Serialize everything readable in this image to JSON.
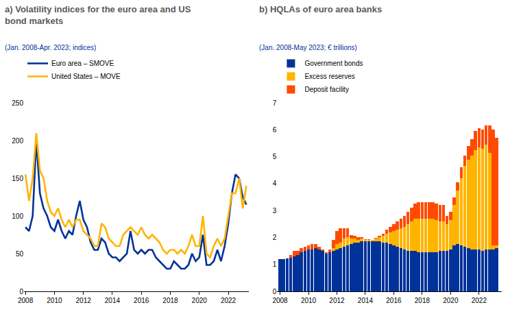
{
  "chart_data": [
    {
      "type": "line",
      "title": "a) Volatility indices for the euro area and US bond markets",
      "subtitle": "(Jan. 2008-Apr. 2023; indices)",
      "x": [
        2008,
        2008.25,
        2008.5,
        2008.75,
        2009,
        2009.25,
        2009.5,
        2009.75,
        2010,
        2010.25,
        2010.5,
        2010.75,
        2011,
        2011.25,
        2011.5,
        2011.75,
        2012,
        2012.25,
        2012.5,
        2012.75,
        2013,
        2013.25,
        2013.5,
        2013.75,
        2014,
        2014.25,
        2014.5,
        2014.75,
        2015,
        2015.25,
        2015.5,
        2015.75,
        2016,
        2016.25,
        2016.5,
        2016.75,
        2017,
        2017.25,
        2017.5,
        2017.75,
        2018,
        2018.25,
        2018.5,
        2018.75,
        2019,
        2019.25,
        2019.5,
        2019.75,
        2020,
        2020.25,
        2020.5,
        2020.75,
        2021,
        2021.25,
        2021.5,
        2021.75,
        2022,
        2022.25,
        2022.5,
        2022.75,
        2023,
        2023.25
      ],
      "series": [
        {
          "name": "Euro area – SMOVE",
          "color": "#003299",
          "values": [
            85,
            80,
            100,
            200,
            130,
            110,
            100,
            85,
            80,
            95,
            80,
            70,
            80,
            75,
            100,
            120,
            95,
            85,
            65,
            55,
            55,
            70,
            65,
            50,
            45,
            45,
            40,
            45,
            50,
            80,
            55,
            50,
            55,
            50,
            55,
            55,
            45,
            40,
            35,
            30,
            30,
            40,
            35,
            30,
            30,
            35,
            50,
            40,
            45,
            75,
            35,
            35,
            40,
            55,
            40,
            60,
            90,
            130,
            155,
            150,
            125,
            115
          ]
        },
        {
          "name": "United States – MOVE",
          "color": "#ffb400",
          "values": [
            155,
            120,
            150,
            210,
            160,
            150,
            120,
            105,
            100,
            110,
            95,
            85,
            95,
            85,
            95,
            95,
            80,
            75,
            70,
            60,
            60,
            90,
            85,
            70,
            65,
            60,
            60,
            75,
            80,
            85,
            80,
            75,
            85,
            75,
            70,
            75,
            70,
            65,
            55,
            50,
            55,
            55,
            50,
            55,
            50,
            60,
            75,
            60,
            60,
            100,
            50,
            45,
            60,
            70,
            60,
            70,
            100,
            130,
            130,
            150,
            110,
            140
          ]
        }
      ],
      "xlim": [
        2007.9,
        2023.4
      ],
      "xticks": [
        2008,
        2010,
        2012,
        2014,
        2016,
        2018,
        2020,
        2022
      ],
      "ylim": [
        0,
        250
      ],
      "yticks": [
        0,
        50,
        100,
        150,
        200,
        250
      ],
      "grid": false,
      "legend": "top left"
    },
    {
      "type": "bar",
      "stacked": true,
      "title": "b) HQLAs of euro area banks",
      "subtitle": "(Jan. 2008-May 2023; € trillions)",
      "x": [
        2008,
        2008.25,
        2008.5,
        2008.75,
        2009,
        2009.25,
        2009.5,
        2009.75,
        2010,
        2010.25,
        2010.5,
        2010.75,
        2011,
        2011.25,
        2011.5,
        2011.75,
        2012,
        2012.25,
        2012.5,
        2012.75,
        2013,
        2013.25,
        2013.5,
        2013.75,
        2014,
        2014.25,
        2014.5,
        2014.75,
        2015,
        2015.25,
        2015.5,
        2015.75,
        2016,
        2016.25,
        2016.5,
        2016.75,
        2017,
        2017.25,
        2017.5,
        2017.75,
        2018,
        2018.25,
        2018.5,
        2018.75,
        2019,
        2019.25,
        2019.5,
        2019.75,
        2020,
        2020.25,
        2020.5,
        2020.75,
        2021,
        2021.25,
        2021.5,
        2021.75,
        2022,
        2022.25,
        2022.5,
        2022.75,
        2023,
        2023.25
      ],
      "series": [
        {
          "name": "Government bonds",
          "color": "#003299",
          "values": [
            1.2,
            1.2,
            1.22,
            1.25,
            1.3,
            1.35,
            1.45,
            1.5,
            1.55,
            1.55,
            1.6,
            1.55,
            1.5,
            1.4,
            1.45,
            1.5,
            1.55,
            1.6,
            1.65,
            1.7,
            1.75,
            1.8,
            1.8,
            1.85,
            1.85,
            1.85,
            1.85,
            1.85,
            1.85,
            1.8,
            1.8,
            1.75,
            1.7,
            1.65,
            1.6,
            1.55,
            1.5,
            1.5,
            1.5,
            1.45,
            1.45,
            1.45,
            1.45,
            1.45,
            1.45,
            1.5,
            1.5,
            1.5,
            1.55,
            1.7,
            1.75,
            1.7,
            1.65,
            1.6,
            1.55,
            1.55,
            1.55,
            1.5,
            1.55,
            1.55,
            1.55,
            1.6
          ]
        },
        {
          "name": "Excess reserves",
          "color": "#ffb400",
          "values": [
            0,
            0,
            0,
            0,
            0,
            0,
            0,
            0,
            0,
            0,
            0,
            0,
            0,
            0,
            0,
            0.1,
            0.2,
            0.2,
            0.3,
            0.3,
            0.2,
            0.15,
            0.1,
            0.1,
            0.05,
            0.05,
            0.05,
            0.1,
            0.15,
            0.25,
            0.35,
            0.45,
            0.55,
            0.65,
            0.75,
            0.85,
            1.0,
            1.1,
            1.2,
            1.25,
            1.25,
            1.25,
            1.25,
            1.25,
            1.2,
            1.1,
            1.1,
            1.0,
            1.1,
            1.5,
            2.0,
            2.5,
            3.0,
            3.3,
            3.5,
            3.7,
            3.8,
            3.8,
            3.9,
            3.6,
            0.15,
            0.1
          ]
        },
        {
          "name": "Deposit facility",
          "color": "#ff4b00",
          "values": [
            0,
            0,
            0,
            0.1,
            0.2,
            0.15,
            0.15,
            0.15,
            0.15,
            0.2,
            0.15,
            0.1,
            0.05,
            0.05,
            0.1,
            0.3,
            0.5,
            0.55,
            0.4,
            0.35,
            0.15,
            0.1,
            0.1,
            0.05,
            0.03,
            0.03,
            0.02,
            0.03,
            0.05,
            0.1,
            0.15,
            0.2,
            0.25,
            0.3,
            0.35,
            0.4,
            0.45,
            0.5,
            0.55,
            0.6,
            0.6,
            0.6,
            0.6,
            0.6,
            0.6,
            0.6,
            0.6,
            0.3,
            0.3,
            0.3,
            0.3,
            0.4,
            0.4,
            0.5,
            0.6,
            0.7,
            0.7,
            0.7,
            0.7,
            1.0,
            4.3,
            4.0
          ]
        }
      ],
      "xlim": [
        2007.8,
        2023.6
      ],
      "xticks": [
        2008,
        2010,
        2012,
        2014,
        2016,
        2018,
        2020,
        2022
      ],
      "ylim": [
        0,
        7
      ],
      "yticks": [
        0,
        1,
        2,
        3,
        4,
        5,
        6,
        7
      ],
      "grid": false,
      "legend": "top left"
    }
  ]
}
